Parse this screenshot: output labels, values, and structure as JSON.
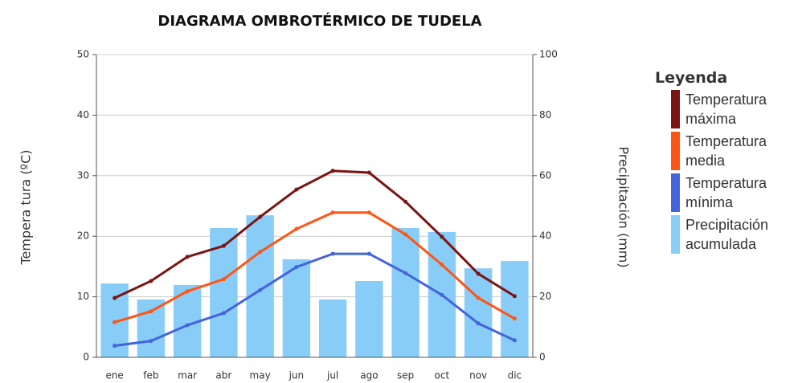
{
  "chart_data": {
    "type": "line",
    "title": "DIAGRAMA OMBROTÉRMICO DE TUDELA",
    "y_label": "Tempera tura (ºC)",
    "y2_label": "Precipitación (mm)",
    "legend_title": "Leyenda",
    "categories": [
      "ene",
      "feb",
      "mar",
      "abr",
      "may",
      "jun",
      "jul",
      "ago",
      "sep",
      "oct",
      "nov",
      "dic"
    ],
    "ylim": [
      0,
      50
    ],
    "yticks": [
      0,
      10,
      20,
      30,
      40,
      50
    ],
    "y2lim": [
      0,
      100
    ],
    "y2ticks": [
      0,
      20,
      40,
      60,
      80,
      100
    ],
    "grid": true,
    "legend": "right",
    "series": [
      {
        "name": "Precipitación acumulada",
        "type": "bar",
        "axis": "y2",
        "color": "#88ccf8",
        "values": [
          24.4,
          19.1,
          23.9,
          42.7,
          46.9,
          32.4,
          19.1,
          25.2,
          42.7,
          41.4,
          29.4,
          31.8
        ]
      },
      {
        "name": "Temperatura máxima",
        "type": "line",
        "color": "#7b1414",
        "values": [
          9.8,
          12.6,
          16.6,
          18.4,
          23.2,
          27.7,
          30.8,
          30.5,
          25.7,
          19.9,
          13.8,
          10.1
        ]
      },
      {
        "name": "Temperatura media",
        "type": "line",
        "color": "#ff5514",
        "values": [
          5.8,
          7.6,
          10.9,
          12.9,
          17.4,
          21.2,
          23.9,
          23.9,
          20.3,
          15.3,
          9.8,
          6.4
        ]
      },
      {
        "name": "Temperatura mínima",
        "type": "line",
        "color": "#4464dc",
        "values": [
          1.9,
          2.7,
          5.3,
          7.3,
          11.1,
          14.9,
          17.1,
          17.1,
          13.9,
          10.3,
          5.6,
          2.8
        ]
      }
    ]
  }
}
